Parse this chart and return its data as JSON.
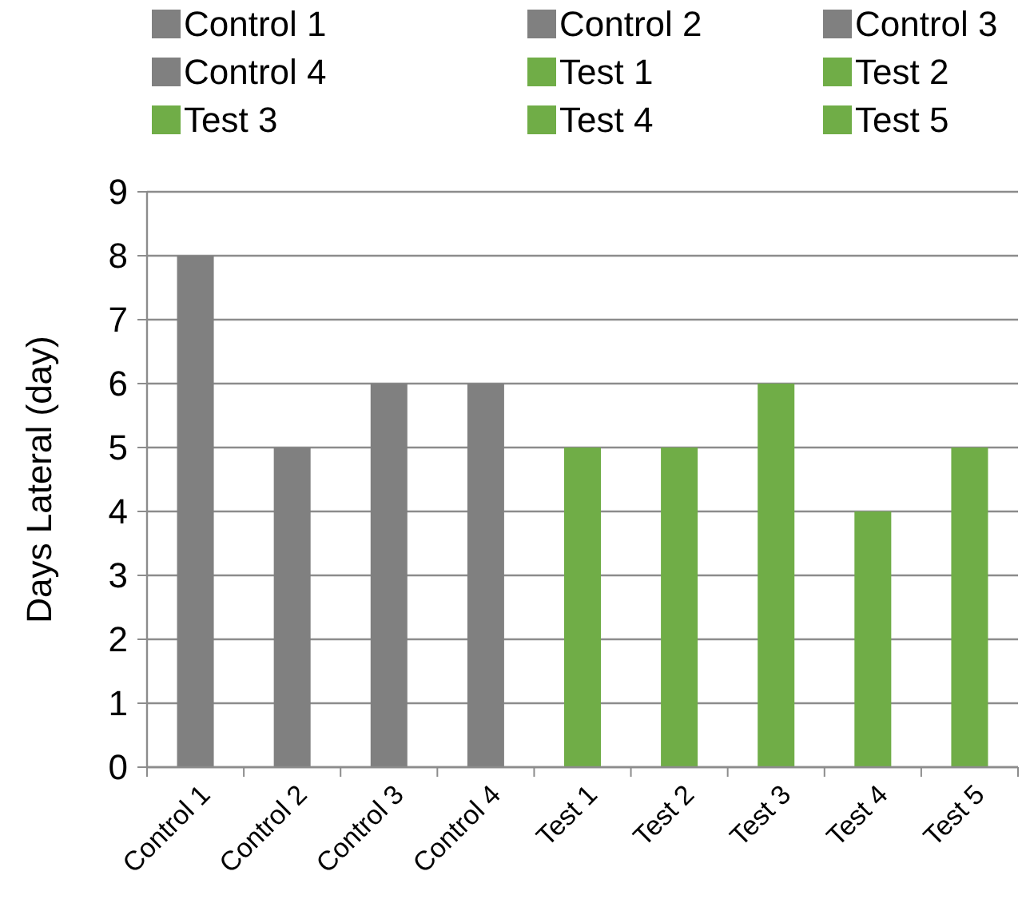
{
  "chart_data": {
    "type": "bar",
    "ylabel": "Days Lateral (day)",
    "categories": [
      "Control 1",
      "Control 2",
      "Control 3",
      "Control 4",
      "Test 1",
      "Test 2",
      "Test 3",
      "Test 4",
      "Test 5"
    ],
    "series": [
      {
        "name": "Control 1",
        "color": "#808080",
        "values": [
          8,
          null,
          null,
          null,
          null,
          null,
          null,
          null,
          null
        ]
      },
      {
        "name": "Control 2",
        "color": "#808080",
        "values": [
          null,
          5,
          null,
          null,
          null,
          null,
          null,
          null,
          null
        ]
      },
      {
        "name": "Control 3",
        "color": "#808080",
        "values": [
          null,
          null,
          6,
          null,
          null,
          null,
          null,
          null,
          null
        ]
      },
      {
        "name": "Control 4",
        "color": "#808080",
        "values": [
          null,
          null,
          null,
          6,
          null,
          null,
          null,
          null,
          null
        ]
      },
      {
        "name": "Test 1",
        "color": "#70ad47",
        "values": [
          null,
          null,
          null,
          null,
          5,
          null,
          null,
          null,
          null
        ]
      },
      {
        "name": "Test 2",
        "color": "#70ad47",
        "values": [
          null,
          null,
          null,
          null,
          null,
          5,
          null,
          null,
          null
        ]
      },
      {
        "name": "Test 3",
        "color": "#70ad47",
        "values": [
          null,
          null,
          null,
          null,
          null,
          null,
          6,
          null,
          null
        ]
      },
      {
        "name": "Test 4",
        "color": "#70ad47",
        "values": [
          null,
          null,
          null,
          null,
          null,
          null,
          null,
          4,
          null
        ]
      },
      {
        "name": "Test 5",
        "color": "#70ad47",
        "values": [
          null,
          null,
          null,
          null,
          null,
          null,
          null,
          null,
          5
        ]
      }
    ],
    "ylim": [
      0,
      9
    ],
    "yticks": [
      0,
      1,
      2,
      3,
      4,
      5,
      6,
      7,
      8,
      9
    ],
    "grid": "y",
    "legend": "top"
  }
}
